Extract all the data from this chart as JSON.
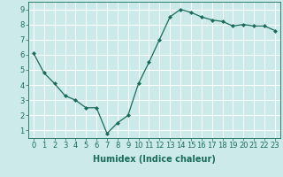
{
  "x": [
    0,
    1,
    2,
    3,
    4,
    5,
    6,
    7,
    8,
    9,
    10,
    11,
    12,
    13,
    14,
    15,
    16,
    17,
    18,
    19,
    20,
    21,
    22,
    23
  ],
  "y": [
    6.1,
    4.8,
    4.1,
    3.3,
    3.0,
    2.5,
    2.5,
    0.8,
    1.5,
    2.0,
    4.1,
    5.5,
    7.0,
    8.5,
    9.0,
    8.8,
    8.5,
    8.3,
    8.2,
    7.9,
    8.0,
    7.9,
    7.9,
    7.6
  ],
  "line_color": "#1a6b5a",
  "marker": "D",
  "marker_size": 2,
  "bg_color": "#cceaea",
  "grid_color": "#ffffff",
  "xlabel": "Humidex (Indice chaleur)",
  "xlim": [
    -0.5,
    23.5
  ],
  "ylim": [
    0.5,
    9.5
  ],
  "yticks": [
    1,
    2,
    3,
    4,
    5,
    6,
    7,
    8,
    9
  ],
  "xticks": [
    0,
    1,
    2,
    3,
    4,
    5,
    6,
    7,
    8,
    9,
    10,
    11,
    12,
    13,
    14,
    15,
    16,
    17,
    18,
    19,
    20,
    21,
    22,
    23
  ],
  "xtick_labels": [
    "0",
    "1",
    "2",
    "3",
    "4",
    "5",
    "6",
    "7",
    "8",
    "9",
    "10",
    "11",
    "12",
    "13",
    "14",
    "15",
    "16",
    "17",
    "18",
    "19",
    "20",
    "21",
    "22",
    "23"
  ],
  "tick_fontsize": 6,
  "label_fontsize": 7
}
